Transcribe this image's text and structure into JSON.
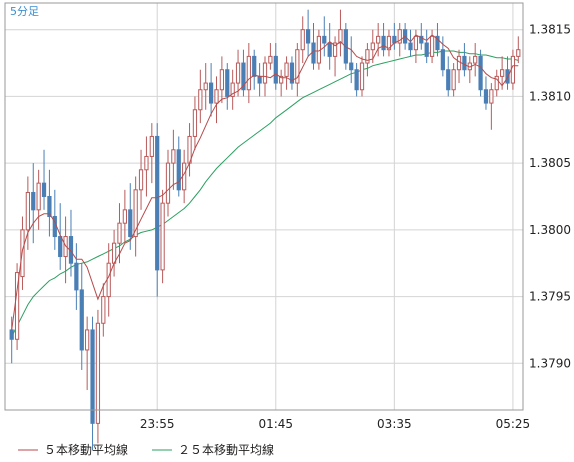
{
  "timeframe_label": "5分足",
  "colors": {
    "up_candle": "#b85a5a",
    "down_candle": "#4a7fb5",
    "ma5": "#b84a4a",
    "ma25": "#2aa060",
    "grid": "#d4d4d4",
    "frame": "#999999"
  },
  "chart_data": {
    "type": "candlestick",
    "y_ticks": [
      "1.3790",
      "1.3795",
      "1.3800",
      "1.3805",
      "1.3810",
      "1.3815"
    ],
    "ylim": [
      1.37865,
      1.3817
    ],
    "x_ticks": [
      {
        "label": "23:55",
        "index": 27
      },
      {
        "label": "01:45",
        "index": 49
      },
      {
        "label": "03:35",
        "index": 71
      },
      {
        "label": "05:25",
        "index": 93
      }
    ],
    "legend": [
      "５本移動平均線",
      "２５本移動平均線"
    ],
    "series": [
      {
        "name": "５本移動平均線",
        "values": [
          1.37925,
          1.37955,
          1.37985,
          1.37998,
          1.38005,
          1.3801,
          1.38012,
          1.38012,
          1.38006,
          1.37996,
          1.37988,
          1.37984,
          1.37978,
          1.37978,
          1.37972,
          1.3796,
          1.37948,
          1.37958,
          1.37965,
          1.37975,
          1.37982,
          1.3799,
          1.37992,
          1.38,
          1.38008,
          1.38016,
          1.38024,
          1.38024,
          1.38026,
          1.3803,
          1.38034,
          1.38036,
          1.38042,
          1.3805,
          1.38061,
          1.38069,
          1.38078,
          1.38087,
          1.38094,
          1.38098,
          1.38099,
          1.38102,
          1.38104,
          1.38108,
          1.38113,
          1.38116,
          1.38115,
          1.38115,
          1.38114,
          1.38117,
          1.38114,
          1.38114,
          1.38112,
          1.38114,
          1.38122,
          1.3813,
          1.38134,
          1.38134,
          1.38137,
          1.38141,
          1.38138,
          1.38141,
          1.38137,
          1.38135,
          1.3813,
          1.38128,
          1.38127,
          1.38128,
          1.38136,
          1.38138,
          1.38136,
          1.3814,
          1.38142,
          1.38145,
          1.38141,
          1.38146,
          1.38144,
          1.38142,
          1.38146,
          1.38143,
          1.38139,
          1.38136,
          1.38129,
          1.38126,
          1.38124,
          1.38122,
          1.38124,
          1.38122,
          1.38117,
          1.38114,
          1.38113,
          1.38108,
          1.38114,
          1.38123,
          1.38123
        ]
      },
      {
        "name": "２５本移動平均線",
        "values": [
          1.3792,
          1.37928,
          1.37936,
          1.37944,
          1.3795,
          1.37954,
          1.37958,
          1.37962,
          1.37964,
          1.37967,
          1.37969,
          1.37972,
          1.37974,
          1.37975,
          1.37976,
          1.37978,
          1.3798,
          1.37982,
          1.37984,
          1.37986,
          1.37988,
          1.37991,
          1.37993,
          1.37996,
          1.37998,
          1.37999,
          1.38,
          1.38002,
          1.38004,
          1.38007,
          1.3801,
          1.38013,
          1.38016,
          1.3802,
          1.38025,
          1.3803,
          1.38036,
          1.38041,
          1.38046,
          1.3805,
          1.38054,
          1.38058,
          1.38062,
          1.38065,
          1.38068,
          1.38071,
          1.38074,
          1.38077,
          1.3808,
          1.38084,
          1.38087,
          1.3809,
          1.38093,
          1.38096,
          1.38099,
          1.38101,
          1.38103,
          1.38105,
          1.38107,
          1.38109,
          1.38111,
          1.38113,
          1.38115,
          1.38117,
          1.38118,
          1.3812,
          1.38121,
          1.38123,
          1.38124,
          1.38125,
          1.38126,
          1.38127,
          1.38128,
          1.38129,
          1.3813,
          1.38131,
          1.38131,
          1.38132,
          1.38133,
          1.38133,
          1.38134,
          1.38134,
          1.38134,
          1.38133,
          1.38133,
          1.38132,
          1.38132,
          1.38131,
          1.38131,
          1.3813,
          1.38129,
          1.38129,
          1.38128,
          1.38128,
          1.38127
        ]
      }
    ],
    "candles": [
      [
        1.37925,
        1.37935,
        1.379,
        1.37918
      ],
      [
        1.37918,
        1.37975,
        1.3791,
        1.37968
      ],
      [
        1.37965,
        1.3801,
        1.37955,
        1.38
      ],
      [
        1.38,
        1.3804,
        1.37985,
        1.38028
      ],
      [
        1.38028,
        1.3805,
        1.3799,
        1.38015
      ],
      [
        1.38015,
        1.38045,
        1.38,
        1.38035
      ],
      [
        1.38035,
        1.3806,
        1.38015,
        1.38025
      ],
      [
        1.38025,
        1.38045,
        1.37995,
        1.3801
      ],
      [
        1.3801,
        1.3803,
        1.37985,
        1.37995
      ],
      [
        1.37995,
        1.3802,
        1.3797,
        1.3798
      ],
      [
        1.3798,
        1.3801,
        1.3796,
        1.37995
      ],
      [
        1.37995,
        1.38015,
        1.37965,
        1.37975
      ],
      [
        1.37975,
        1.3799,
        1.3794,
        1.37955
      ],
      [
        1.37955,
        1.37975,
        1.37895,
        1.3791
      ],
      [
        1.3791,
        1.37935,
        1.3788,
        1.37925
      ],
      [
        1.37925,
        1.37935,
        1.37835,
        1.37855
      ],
      [
        1.37855,
        1.3794,
        1.3784,
        1.3793
      ],
      [
        1.3793,
        1.3796,
        1.3792,
        1.3795
      ],
      [
        1.3795,
        1.3799,
        1.37935,
        1.37975
      ],
      [
        1.37975,
        1.38,
        1.37965,
        1.3799
      ],
      [
        1.3799,
        1.3802,
        1.37975,
        1.38005
      ],
      [
        1.38005,
        1.3803,
        1.3799,
        1.38015
      ],
      [
        1.38015,
        1.38035,
        1.37985,
        1.37995
      ],
      [
        1.37995,
        1.3804,
        1.3798,
        1.3803
      ],
      [
        1.3803,
        1.3806,
        1.38015,
        1.38045
      ],
      [
        1.38045,
        1.3807,
        1.38025,
        1.38055
      ],
      [
        1.38055,
        1.3808,
        1.38035,
        1.3807
      ],
      [
        1.3807,
        1.3808,
        1.3795,
        1.3797
      ],
      [
        1.3797,
        1.3803,
        1.3796,
        1.3802
      ],
      [
        1.3802,
        1.3806,
        1.3801,
        1.3805
      ],
      [
        1.3805,
        1.38075,
        1.3803,
        1.3806
      ],
      [
        1.3806,
        1.3807,
        1.38025,
        1.3803
      ],
      [
        1.3803,
        1.3806,
        1.3802,
        1.3805
      ],
      [
        1.3805,
        1.3808,
        1.3804,
        1.3807
      ],
      [
        1.3807,
        1.381,
        1.3806,
        1.3809
      ],
      [
        1.3809,
        1.3812,
        1.3808,
        1.38105
      ],
      [
        1.38105,
        1.38125,
        1.3809,
        1.3811
      ],
      [
        1.3811,
        1.38125,
        1.38085,
        1.38095
      ],
      [
        1.38095,
        1.38115,
        1.3808,
        1.38105
      ],
      [
        1.38105,
        1.3813,
        1.38095,
        1.3812
      ],
      [
        1.3812,
        1.38125,
        1.3809,
        1.381
      ],
      [
        1.381,
        1.3812,
        1.3809,
        1.3811
      ],
      [
        1.3811,
        1.38135,
        1.381,
        1.38125
      ],
      [
        1.38125,
        1.38135,
        1.381,
        1.38105
      ],
      [
        1.38105,
        1.3814,
        1.38095,
        1.3813
      ],
      [
        1.3813,
        1.38135,
        1.38105,
        1.38115
      ],
      [
        1.38115,
        1.38125,
        1.381,
        1.3811
      ],
      [
        1.3811,
        1.3813,
        1.381,
        1.38125
      ],
      [
        1.38125,
        1.3814,
        1.3812,
        1.3813
      ],
      [
        1.3813,
        1.3814,
        1.38105,
        1.3811
      ],
      [
        1.3811,
        1.3812,
        1.381,
        1.38115
      ],
      [
        1.38115,
        1.3813,
        1.38105,
        1.38125
      ],
      [
        1.38125,
        1.3813,
        1.38105,
        1.3811
      ],
      [
        1.3811,
        1.3814,
        1.381,
        1.38135
      ],
      [
        1.38135,
        1.3816,
        1.38125,
        1.3815
      ],
      [
        1.3815,
        1.38165,
        1.3813,
        1.3814
      ],
      [
        1.3814,
        1.38155,
        1.3812,
        1.38125
      ],
      [
        1.38125,
        1.3815,
        1.3812,
        1.38145
      ],
      [
        1.38145,
        1.3816,
        1.3813,
        1.3814
      ],
      [
        1.3814,
        1.38155,
        1.3812,
        1.3813
      ],
      [
        1.3813,
        1.38145,
        1.38115,
        1.3814
      ],
      [
        1.3814,
        1.38165,
        1.3813,
        1.3815
      ],
      [
        1.3815,
        1.38155,
        1.3812,
        1.38125
      ],
      [
        1.38125,
        1.38145,
        1.3811,
        1.3812
      ],
      [
        1.3812,
        1.38125,
        1.381,
        1.38105
      ],
      [
        1.38105,
        1.3813,
        1.381,
        1.38125
      ],
      [
        1.38125,
        1.3814,
        1.38115,
        1.38135
      ],
      [
        1.38135,
        1.3815,
        1.38125,
        1.3814
      ],
      [
        1.3814,
        1.38155,
        1.3813,
        1.38145
      ],
      [
        1.38145,
        1.38155,
        1.3813,
        1.38135
      ],
      [
        1.38135,
        1.3815,
        1.3813,
        1.38145
      ],
      [
        1.38145,
        1.38155,
        1.38135,
        1.3814
      ],
      [
        1.3814,
        1.38155,
        1.3813,
        1.3815
      ],
      [
        1.3815,
        1.38155,
        1.38135,
        1.3814
      ],
      [
        1.3814,
        1.3815,
        1.3813,
        1.38135
      ],
      [
        1.38135,
        1.3815,
        1.38125,
        1.38145
      ],
      [
        1.38145,
        1.38155,
        1.38135,
        1.3814
      ],
      [
        1.3814,
        1.3815,
        1.38125,
        1.3813
      ],
      [
        1.3813,
        1.3815,
        1.38125,
        1.38145
      ],
      [
        1.38145,
        1.38155,
        1.3813,
        1.38135
      ],
      [
        1.38135,
        1.38145,
        1.38115,
        1.3812
      ],
      [
        1.3812,
        1.3813,
        1.381,
        1.38105
      ],
      [
        1.38105,
        1.38125,
        1.381,
        1.3812
      ],
      [
        1.3812,
        1.38135,
        1.3811,
        1.3813
      ],
      [
        1.3813,
        1.3814,
        1.38115,
        1.3812
      ],
      [
        1.3812,
        1.3813,
        1.3811,
        1.38125
      ],
      [
        1.38125,
        1.3814,
        1.38115,
        1.3813
      ],
      [
        1.3813,
        1.38135,
        1.381,
        1.38105
      ],
      [
        1.38105,
        1.38115,
        1.3809,
        1.38095
      ],
      [
        1.38095,
        1.3811,
        1.38075,
        1.38105
      ],
      [
        1.38105,
        1.3812,
        1.381,
        1.38115
      ],
      [
        1.38115,
        1.3813,
        1.38105,
        1.3812
      ],
      [
        1.3812,
        1.3813,
        1.38105,
        1.3811
      ],
      [
        1.3811,
        1.38135,
        1.38105,
        1.3813
      ],
      [
        1.3813,
        1.38145,
        1.38125,
        1.38135
      ]
    ]
  }
}
